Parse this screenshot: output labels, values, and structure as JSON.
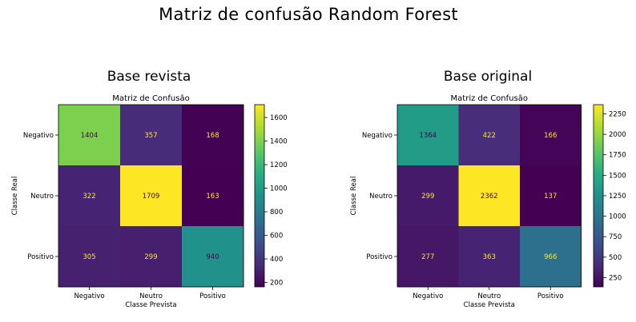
{
  "figure": {
    "title": "Matriz de confusão Random Forest"
  },
  "chart_data": [
    {
      "type": "heatmap",
      "panel_title": "Base revista",
      "title": "Matriz de Confusão",
      "xlabel": "Classe Prevista",
      "ylabel": "Classe Real",
      "x_categories": [
        "Negativo",
        "Neutro",
        "Positivo"
      ],
      "y_categories": [
        "Negativo",
        "Neutro",
        "Positivo"
      ],
      "values": [
        [
          1404,
          357,
          168
        ],
        [
          322,
          1709,
          163
        ],
        [
          305,
          299,
          940
        ]
      ],
      "colormap": "viridis",
      "colorbar_range": [
        163,
        1709
      ],
      "colorbar_ticks": [
        200,
        400,
        600,
        800,
        1000,
        1200,
        1400,
        1600
      ]
    },
    {
      "type": "heatmap",
      "panel_title": "Base original",
      "title": "Matriz de Confusão",
      "xlabel": "Classe Prevista",
      "ylabel": "Classe Real",
      "x_categories": [
        "Negativo",
        "Neutro",
        "Positivo"
      ],
      "y_categories": [
        "Negativo",
        "Neutro",
        "Positivo"
      ],
      "values": [
        [
          1364,
          422,
          166
        ],
        [
          299,
          2362,
          137
        ],
        [
          277,
          363,
          966
        ]
      ],
      "colormap": "viridis",
      "colorbar_range": [
        137,
        2362
      ],
      "colorbar_ticks": [
        250,
        500,
        750,
        1000,
        1250,
        1500,
        1750,
        2000,
        2250
      ]
    }
  ]
}
